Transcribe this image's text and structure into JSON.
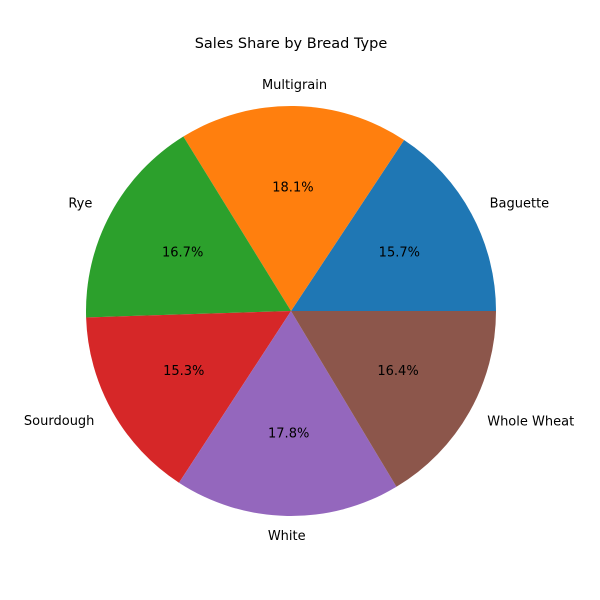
{
  "chart_data": {
    "type": "pie",
    "title": "Sales Share by Bread Type",
    "categories": [
      "Baguette",
      "Multigrain",
      "Rye",
      "Sourdough",
      "White",
      "Whole Wheat"
    ],
    "values": [
      15.7,
      18.1,
      16.7,
      15.3,
      17.8,
      16.4
    ],
    "value_labels": [
      "15.7%",
      "18.1%",
      "16.7%",
      "15.3%",
      "17.8%",
      "16.4%"
    ],
    "colors": [
      "#1f77b4",
      "#ff7f0e",
      "#2ca02c",
      "#d62728",
      "#9467bd",
      "#8c564b"
    ],
    "start_angle_deg": 0,
    "direction": "counterclockwise",
    "legend": "none"
  }
}
